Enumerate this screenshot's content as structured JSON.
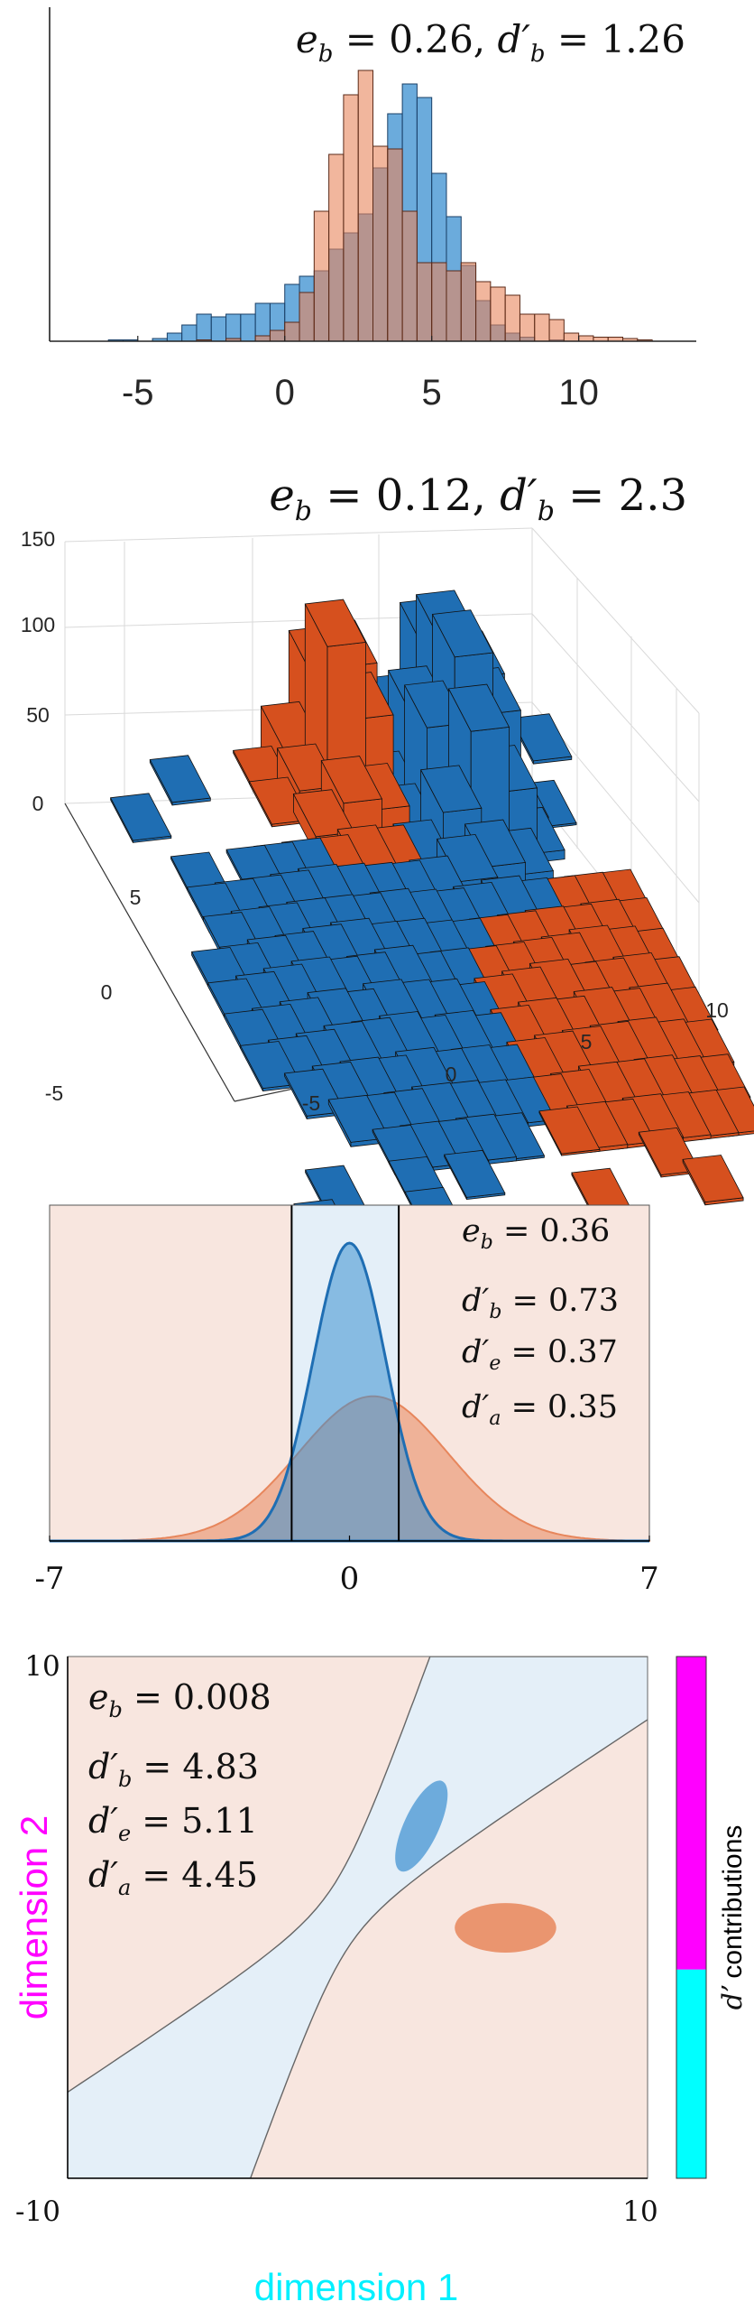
{
  "colors": {
    "blue": "#3a8fd0",
    "blue_dark": "#1f5a8c",
    "orange": "#e7865c",
    "orange_dark": "#d6501e",
    "blue3d": "#1f6eb3",
    "orange3d": "#d6501e",
    "bg_blue": "#e4eff8",
    "bg_orange": "#f8e6df",
    "magenta": "#ff00ff",
    "cyan": "#00ffff"
  },
  "chart_data": [
    {
      "type": "bar",
      "subtype": "overlaid-histogram",
      "title": "e_b = 0.26, d'_b = 1.26",
      "xlim": [
        -8,
        14
      ],
      "xticks": [
        "-5",
        "0",
        "5",
        "10"
      ],
      "xtick_values": [
        -5,
        0,
        5,
        10
      ],
      "bin_width": 0.5,
      "series": [
        {
          "name": "",
          "color": "blue",
          "bins": [
            [
              -6,
              0.5
            ],
            [
              -5.5,
              0.5
            ],
            [
              -4.5,
              1
            ],
            [
              -4,
              3
            ],
            [
              -3.5,
              6
            ],
            [
              -3,
              10
            ],
            [
              -2.5,
              9
            ],
            [
              -2,
              10
            ],
            [
              -1.5,
              10
            ],
            [
              -1,
              14
            ],
            [
              -0.5,
              14
            ],
            [
              0,
              21
            ],
            [
              0.5,
              24
            ],
            [
              1,
              26
            ],
            [
              1.5,
              34
            ],
            [
              2,
              40
            ],
            [
              2.5,
              47
            ],
            [
              3,
              64
            ],
            [
              3.5,
              84
            ],
            [
              4,
              95
            ],
            [
              4.5,
              90
            ],
            [
              5,
              62
            ],
            [
              5.5,
              46
            ],
            [
              6,
              28
            ],
            [
              6.5,
              15
            ],
            [
              7,
              6
            ],
            [
              7.5,
              3
            ],
            [
              8,
              1.5
            ],
            [
              9,
              0.5
            ]
          ]
        },
        {
          "name": "",
          "color": "orange",
          "bins": [
            [
              -3,
              0.5
            ],
            [
              -2,
              1
            ],
            [
              -1,
              2
            ],
            [
              -0.5,
              4
            ],
            [
              0,
              7
            ],
            [
              0.5,
              18
            ],
            [
              1,
              48
            ],
            [
              1.5,
              69
            ],
            [
              2,
              91
            ],
            [
              2.5,
              100
            ],
            [
              3,
              72
            ],
            [
              3.5,
              71
            ],
            [
              4,
              48
            ],
            [
              4.5,
              29
            ],
            [
              5,
              29
            ],
            [
              5.5,
              26
            ],
            [
              6,
              29
            ],
            [
              6.5,
              22
            ],
            [
              7,
              20
            ],
            [
              7.5,
              17
            ],
            [
              8,
              10
            ],
            [
              8.5,
              10
            ],
            [
              9,
              8
            ],
            [
              9.5,
              3
            ],
            [
              10,
              2
            ],
            [
              10.5,
              1.5
            ],
            [
              11,
              1.5
            ],
            [
              11.5,
              1
            ],
            [
              12,
              0.5
            ]
          ]
        }
      ]
    },
    {
      "type": "bar",
      "subtype": "3d-histogram",
      "title": "e_b = 0.12, d'_b = 2.3",
      "zticks": [
        "0",
        "50",
        "100",
        "150"
      ],
      "zlim": [
        0,
        150
      ],
      "xticks": [
        "-5",
        "0",
        "5",
        "10"
      ],
      "yticks": [
        "-5",
        "0",
        "5"
      ],
      "series": [
        {
          "name": "",
          "color": "blue3d",
          "peak": [
            4,
            5
          ],
          "peak_height": 120
        },
        {
          "name": "",
          "color": "orange3d",
          "peak": [
            1,
            6
          ],
          "peak_height": 82
        }
      ]
    },
    {
      "type": "area",
      "subtype": "1d-gaussian-classification",
      "xlim": [
        -7,
        7
      ],
      "xticks": [
        "-7",
        "0",
        "7"
      ],
      "xtick_values": [
        -7,
        0,
        7
      ],
      "boundaries": [
        -1.35,
        1.15
      ],
      "series": [
        {
          "name": "",
          "color": "blue",
          "mean": 0,
          "sd": 0.85
        },
        {
          "name": "",
          "color": "orange",
          "mean": 0.55,
          "sd": 1.75
        }
      ],
      "annotations": [
        "e_b = 0.36",
        "d'_b = 0.73",
        "d'_e = 0.37",
        "d'_a = 0.35"
      ]
    },
    {
      "type": "scatter",
      "subtype": "2d-classification-regions",
      "xlim": [
        -10,
        10
      ],
      "ylim": [
        -10,
        10
      ],
      "xticks": [
        "-10",
        "10"
      ],
      "yticks": [
        "10"
      ],
      "ytick_bottom": "-10",
      "xlabel": "dimension 1",
      "ylabel": "dimension 2",
      "ellipses": [
        {
          "name": "",
          "color": "blue",
          "cx": 2.2,
          "cy": 3.5,
          "rx": 0.6,
          "ry": 1.9,
          "angle_deg": 25
        },
        {
          "name": "",
          "color": "orange",
          "cx": 5.1,
          "cy": -0.4,
          "rx": 1.75,
          "ry": 0.95,
          "angle_deg": 0
        }
      ],
      "annotations": [
        "e_b = 0.008",
        "d'_b = 4.83",
        "d'_e = 5.11",
        "d'_a = 4.45"
      ],
      "colorbar_label": "d' contributions",
      "colorbar_split": 0.4
    }
  ]
}
